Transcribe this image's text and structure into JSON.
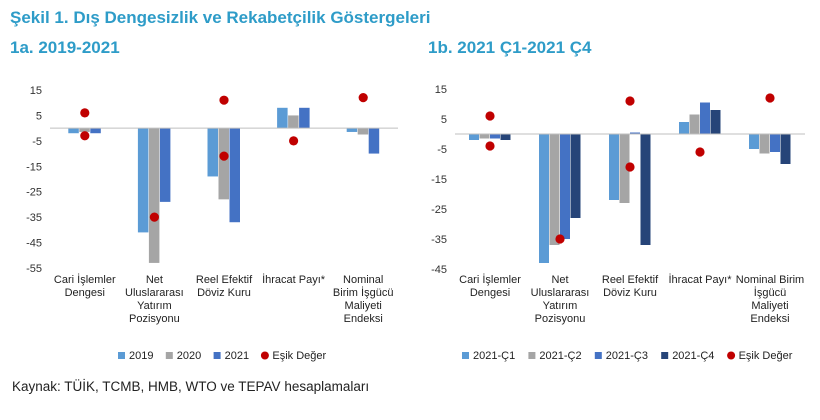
{
  "figure_title": "Şekil 1. Dış Dengesizlik ve Rekabetçilik Göstergeleri",
  "source": "Kaynak: TÜİK, TCMB, HMB, WTO ve TEPAV hesaplamaları",
  "colors": {
    "title": "#2e9cc8",
    "s1": "#5b9bd5",
    "s2": "#a5a5a5",
    "s3": "#4472c4",
    "s4": "#264478",
    "threshold": "#c00000"
  },
  "chart_data": [
    {
      "type": "bar",
      "title": "1a. 2019-2021",
      "categories": [
        [
          "Cari İşlemler",
          "Dengesi"
        ],
        [
          "Net",
          "Uluslararası",
          "Yatırım",
          "Pozisyonu"
        ],
        [
          "Reel Efektif",
          "Döviz Kuru"
        ],
        [
          "İhracat Payı*"
        ],
        [
          "Nominal",
          "Birim İşgücü",
          "Maliyeti",
          "Endeksi"
        ]
      ],
      "ylim": [
        -55,
        15
      ],
      "yticks": [
        15,
        5,
        -5,
        -15,
        -25,
        -35,
        -45,
        -55
      ],
      "series": [
        {
          "name": "2019",
          "values": [
            -2,
            -41,
            -19,
            8,
            -1.5
          ]
        },
        {
          "name": "2020",
          "values": [
            -1.5,
            -53,
            -28,
            5,
            -2.5
          ]
        },
        {
          "name": "2021",
          "values": [
            -2,
            -29,
            -37,
            8,
            -10
          ]
        }
      ],
      "threshold": {
        "name": "Eşik Değer",
        "points": [
          [
            6,
            -3
          ],
          [
            -35
          ],
          [
            11,
            -11
          ],
          [
            -5
          ],
          [
            12
          ]
        ]
      },
      "legend": "bottom"
    },
    {
      "type": "bar",
      "title": "1b. 2021 Ç1-2021 Ç4",
      "categories": [
        [
          "Cari İşlemler",
          "Dengesi"
        ],
        [
          "Net",
          "Uluslararası",
          "Yatırım",
          "Pozisyonu"
        ],
        [
          "Reel Efektif",
          "Döviz Kuru"
        ],
        [
          "İhracat Payı*"
        ],
        [
          "Nominal Birim",
          "İşgücü",
          "Maliyeti",
          "Endeksi"
        ]
      ],
      "ylim": [
        -45,
        15
      ],
      "yticks": [
        15,
        5,
        -5,
        -15,
        -25,
        -35,
        -45
      ],
      "series": [
        {
          "name": "2021-Ç1",
          "values": [
            -2,
            -43,
            -22,
            4,
            -5
          ]
        },
        {
          "name": "2021-Ç2",
          "values": [
            -1.5,
            -37,
            -23,
            6.5,
            -6.5
          ]
        },
        {
          "name": "2021-Ç3",
          "values": [
            -1.5,
            -35,
            0.5,
            10.5,
            -6
          ]
        },
        {
          "name": "2021-Ç4",
          "values": [
            -2,
            -28,
            -37,
            8,
            -10
          ]
        }
      ],
      "threshold": {
        "name": "Eşik Değer",
        "points": [
          [
            6,
            -4
          ],
          [
            -35
          ],
          [
            11,
            -11
          ],
          [
            -6
          ],
          [
            12
          ]
        ]
      },
      "legend": "bottom"
    }
  ]
}
